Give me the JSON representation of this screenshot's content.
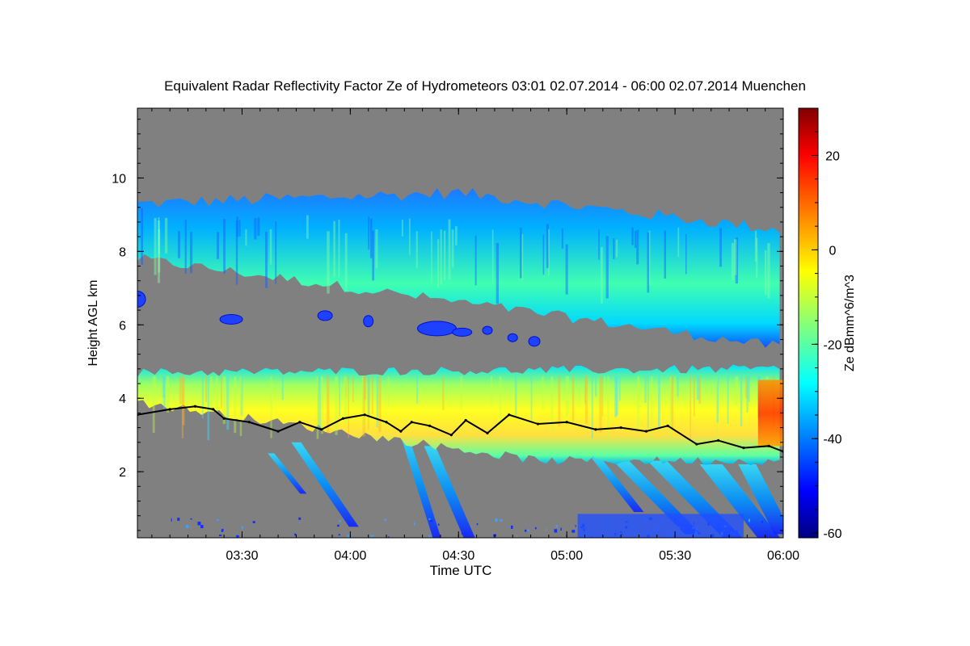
{
  "chart_data": {
    "type": "heatmap",
    "title": "Equivalent Radar Reflectivity Factor Ze of Hydrometeors   03:01 02.07.2014 - 06:00 02.07.2014 Muenchen",
    "xlabel": "Time UTC",
    "ylabel": "Height AGL km",
    "colorbar_label": "Ze dBmm^6/m^3",
    "x_range": [
      "03:01",
      "06:00"
    ],
    "x_ticks": [
      "03:30",
      "04:00",
      "04:30",
      "05:00",
      "05:30",
      "06:00"
    ],
    "y_range": [
      0.2,
      11.9
    ],
    "y_ticks": [
      2,
      4,
      6,
      8,
      10
    ],
    "colorbar_range": [
      -61,
      30
    ],
    "colorbar_ticks": [
      -60,
      -40,
      -20,
      0,
      20
    ],
    "no_data_color": "#808080",
    "layers": [
      {
        "name": "upper cirrus layer",
        "time_start": "03:01",
        "time_end": "05:59",
        "base_km": [
          7.8,
          6.5,
          5.4
        ],
        "top_km": [
          9.3,
          9.6,
          8.6
        ],
        "typical_ze_dbz": -25
      },
      {
        "name": "mid-level patches",
        "time_start": "03:01",
        "time_end": "04:53",
        "height_km": [
          5.8,
          6.7
        ],
        "typical_ze_dbz": -40
      },
      {
        "name": "lower stratiform layer",
        "time_start": "03:01",
        "time_end": "05:59",
        "base_km": [
          3.9,
          2.3
        ],
        "top_km": [
          4.7,
          4.8
        ],
        "typical_ze_dbz": -5
      },
      {
        "name": "fall streaks",
        "time_start": "03:35",
        "time_end": "05:59",
        "height_km": [
          0.2,
          3.0
        ],
        "typical_ze_dbz": -30
      }
    ],
    "overlay_line": {
      "color": "#000000",
      "points": [
        [
          "03:01",
          3.55
        ],
        [
          "03:10",
          3.7
        ],
        [
          "03:17",
          3.78
        ],
        [
          "03:22",
          3.7
        ],
        [
          "03:25",
          3.45
        ],
        [
          "03:32",
          3.35
        ],
        [
          "03:40",
          3.1
        ],
        [
          "03:46",
          3.35
        ],
        [
          "03:52",
          3.15
        ],
        [
          "03:58",
          3.45
        ],
        [
          "04:04",
          3.55
        ],
        [
          "04:10",
          3.35
        ],
        [
          "04:14",
          3.1
        ],
        [
          "04:17",
          3.35
        ],
        [
          "04:22",
          3.25
        ],
        [
          "04:28",
          3.0
        ],
        [
          "04:32",
          3.4
        ],
        [
          "04:38",
          3.05
        ],
        [
          "04:44",
          3.55
        ],
        [
          "04:52",
          3.3
        ],
        [
          "05:00",
          3.35
        ],
        [
          "05:08",
          3.15
        ],
        [
          "05:15",
          3.2
        ],
        [
          "05:22",
          3.1
        ],
        [
          "05:28",
          3.25
        ],
        [
          "05:36",
          2.75
        ],
        [
          "05:42",
          2.85
        ],
        [
          "05:49",
          2.65
        ],
        [
          "05:56",
          2.7
        ],
        [
          "06:00",
          2.55
        ]
      ]
    }
  }
}
